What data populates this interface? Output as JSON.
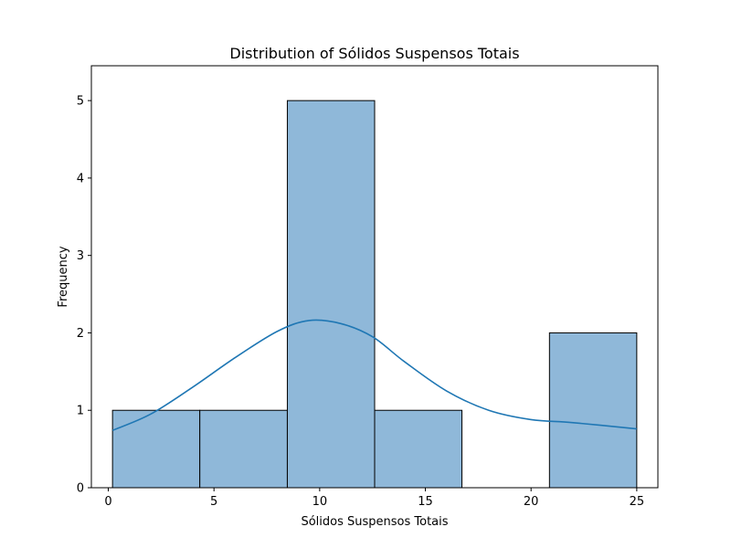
{
  "chart_data": {
    "type": "bar",
    "title": "Distribution of Sólidos Suspensos Totais",
    "xlabel": "Sólidos Suspensos Totais",
    "ylabel": "Frequency",
    "xlim": [
      -0.8,
      26.0
    ],
    "ylim": [
      0,
      5.45
    ],
    "xticks": [
      0,
      5,
      10,
      15,
      20,
      25
    ],
    "yticks": [
      0,
      1,
      2,
      3,
      4,
      5
    ],
    "bins": [
      {
        "x0": 0.2,
        "x1": 4.33,
        "count": 1
      },
      {
        "x0": 4.33,
        "x1": 8.47,
        "count": 1
      },
      {
        "x0": 8.47,
        "x1": 12.6,
        "count": 5
      },
      {
        "x0": 12.6,
        "x1": 16.73,
        "count": 1
      },
      {
        "x0": 16.73,
        "x1": 20.87,
        "count": 0
      },
      {
        "x0": 20.87,
        "x1": 25.0,
        "count": 2
      }
    ],
    "kde": {
      "x": [
        0.2,
        2,
        4,
        6,
        8,
        9.5,
        11,
        12.5,
        14,
        16,
        18,
        20,
        22,
        25
      ],
      "y": [
        0.74,
        0.95,
        1.3,
        1.68,
        2.02,
        2.16,
        2.12,
        1.95,
        1.63,
        1.25,
        1.0,
        0.88,
        0.84,
        0.76
      ]
    },
    "grid": false,
    "colors": {
      "bar_fill": "#8fb8d9",
      "bar_edge": "#000000",
      "kde_line": "#1f77b4"
    }
  }
}
